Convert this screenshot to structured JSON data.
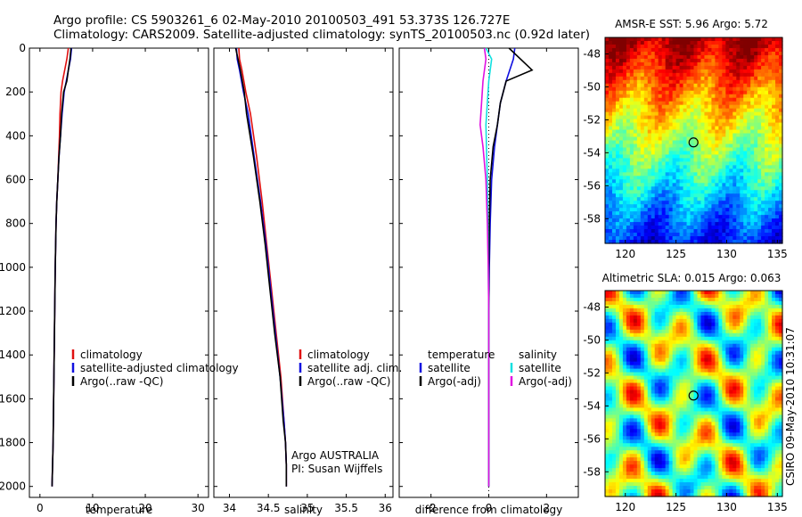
{
  "header": {
    "title_line1": "Argo profile: CS 5903261_6 02-May-2010 20100503_491 53.373S 126.727E",
    "title_line2": "Climatology: CARS2009. Satellite-adjusted climatology: synTS_20100503.nc (0.92d later)"
  },
  "colors": {
    "climatology": "#e01010",
    "satellite": "#1010e0",
    "argo": "#000000",
    "satellite_diff": "#10e0e0",
    "argo_diff": "#e010e0"
  },
  "footer": {
    "agency": "Argo AUSTRALIA",
    "pi": "PI: Susan Wijffels",
    "stamp": "CSIRO 09-May-2010 10:31:07"
  },
  "chart_data": [
    {
      "id": "temperature",
      "type": "line",
      "xlabel": "temperature",
      "ylabel": "",
      "xlim": [
        -2,
        32
      ],
      "ylim": [
        2050,
        0
      ],
      "xticks": [
        "0",
        "10",
        "20",
        "30"
      ],
      "xtick_values": [
        0,
        10,
        20,
        30
      ],
      "yticks": [
        "0",
        "200",
        "400",
        "600",
        "800",
        "1000",
        "1200",
        "1400",
        "1600",
        "1800",
        "2000"
      ],
      "ytick_values": [
        0,
        200,
        400,
        600,
        800,
        1000,
        1200,
        1400,
        1600,
        1800,
        2000
      ],
      "legend": [
        "climatology",
        "satellite-adjusted climatology",
        "Argo(..raw -QC)"
      ],
      "series": [
        {
          "name": "climatology",
          "color": "#e01010",
          "x": [
            5.4,
            5.1,
            4.7,
            4.3,
            4.0,
            3.8,
            3.7,
            3.55,
            3.4,
            3.2,
            3.05,
            2.9,
            2.8,
            2.7,
            2.6,
            2.5,
            2.4,
            2.3
          ],
          "y": [
            0,
            50,
            100,
            150,
            200,
            300,
            400,
            500,
            600,
            700,
            800,
            1000,
            1200,
            1400,
            1600,
            1800,
            1900,
            2000
          ]
        },
        {
          "name": "satellite-adjusted climatology",
          "color": "#1010e0",
          "x": [
            6.0,
            5.8,
            5.4,
            5.0,
            4.6,
            4.2,
            3.9,
            3.6,
            3.4,
            3.2,
            3.05,
            2.9,
            2.8,
            2.7,
            2.6,
            2.5,
            2.4,
            2.3
          ],
          "y": [
            0,
            50,
            100,
            150,
            200,
            300,
            400,
            500,
            600,
            700,
            800,
            1000,
            1200,
            1400,
            1600,
            1800,
            1900,
            2000
          ]
        },
        {
          "name": "Argo(..raw -QC)",
          "color": "#000000",
          "x": [
            5.9,
            5.7,
            5.4,
            5.1,
            4.5,
            4.1,
            3.9,
            3.6,
            3.4,
            3.2,
            3.05,
            2.9,
            2.8,
            2.7,
            2.6,
            2.5,
            2.4,
            2.3
          ],
          "y": [
            0,
            50,
            100,
            150,
            200,
            300,
            400,
            500,
            600,
            700,
            800,
            1000,
            1200,
            1400,
            1600,
            1800,
            1900,
            2000
          ]
        }
      ]
    },
    {
      "id": "salinity",
      "type": "line",
      "xlabel": "salinity",
      "ylabel": "",
      "xlim": [
        33.8,
        36.1
      ],
      "ylim": [
        2050,
        0
      ],
      "xticks": [
        "34",
        "34.5",
        "35",
        "35.5",
        "36"
      ],
      "xtick_values": [
        34,
        34.5,
        35,
        35.5,
        36
      ],
      "legend": [
        "climatology",
        "satellite adj. clim.",
        "Argo(..raw -QC)"
      ],
      "series": [
        {
          "name": "climatology",
          "color": "#e01010",
          "x": [
            34.12,
            34.13,
            34.16,
            34.21,
            34.27,
            34.35,
            34.42,
            34.48,
            34.54,
            34.6,
            34.66,
            34.7,
            34.72,
            34.73,
            34.73
          ],
          "y": [
            0,
            50,
            100,
            200,
            300,
            500,
            700,
            900,
            1100,
            1300,
            1500,
            1700,
            1800,
            1900,
            2000
          ]
        },
        {
          "name": "satellite adj. clim.",
          "color": "#1010e0",
          "x": [
            34.09,
            34.1,
            34.13,
            34.18,
            34.24,
            34.32,
            34.4,
            34.47,
            34.53,
            34.59,
            34.65,
            34.7,
            34.72,
            34.73,
            34.73
          ],
          "y": [
            0,
            50,
            100,
            200,
            300,
            500,
            700,
            900,
            1100,
            1300,
            1500,
            1700,
            1800,
            1900,
            2000
          ]
        },
        {
          "name": "Argo(..raw -QC)",
          "color": "#000000",
          "x": [
            34.08,
            34.11,
            34.14,
            34.19,
            34.22,
            34.31,
            34.39,
            34.46,
            34.52,
            34.58,
            34.65,
            34.69,
            34.72,
            34.73,
            34.73
          ],
          "y": [
            0,
            50,
            100,
            200,
            300,
            500,
            700,
            900,
            1100,
            1300,
            1500,
            1700,
            1800,
            1900,
            2000
          ]
        }
      ]
    },
    {
      "id": "difference",
      "type": "line",
      "xlabel": "difference from climatology",
      "ylabel": "",
      "xlim": [
        -3.1,
        3.1
      ],
      "ylim": [
        2050,
        0
      ],
      "xticks": [
        "-2",
        "0",
        "2"
      ],
      "xtick_values": [
        -2,
        0,
        2
      ],
      "legend_groups": [
        "temperature",
        "salinity"
      ],
      "legend": [
        "satellite",
        "Argo(-adj)",
        "satellite",
        "Argo(-adj)"
      ],
      "series": [
        {
          "name": "temperature satellite",
          "color": "#1010e0",
          "x": [
            0.9,
            0.85,
            0.6,
            0.4,
            0.3,
            0.2,
            0.1,
            0.05,
            0.02,
            0,
            0,
            0,
            0
          ],
          "y": [
            0,
            50,
            150,
            250,
            350,
            450,
            600,
            800,
            1000,
            1200,
            1500,
            1800,
            2000
          ]
        },
        {
          "name": "temperature Argo(-adj)",
          "color": "#000000",
          "x": [
            0.7,
            1.5,
            0.6,
            0.4,
            0.3,
            0.15,
            0.05,
            0.02,
            0,
            0,
            0,
            0,
            0
          ],
          "y": [
            0,
            100,
            150,
            250,
            350,
            450,
            600,
            800,
            1000,
            1200,
            1500,
            1800,
            2000
          ]
        },
        {
          "name": "salinity satellite",
          "color": "#10e0e0",
          "x": [
            -0.1,
            0.1,
            0.0,
            -0.05,
            -0.1,
            -0.08,
            -0.05,
            -0.03,
            -0.02,
            0,
            0,
            0,
            0
          ],
          "y": [
            0,
            50,
            150,
            250,
            350,
            450,
            600,
            800,
            1000,
            1200,
            1500,
            1800,
            2000
          ]
        },
        {
          "name": "salinity Argo(-adj)",
          "color": "#e010e0",
          "x": [
            -0.15,
            -0.1,
            -0.2,
            -0.25,
            -0.3,
            -0.2,
            -0.1,
            -0.05,
            -0.02,
            0,
            0,
            0,
            0
          ],
          "y": [
            0,
            50,
            150,
            250,
            350,
            450,
            600,
            800,
            1000,
            1200,
            1500,
            1800,
            2000
          ]
        }
      ]
    },
    {
      "id": "sst-map",
      "type": "heatmap",
      "title": "AMSR-E SST: 5.96 Argo: 5.72",
      "xlim": [
        118,
        135.5
      ],
      "ylim": [
        -59.5,
        -47
      ],
      "xticks": [
        "120",
        "125",
        "130",
        "135"
      ],
      "xtick_values": [
        120,
        125,
        130,
        135
      ],
      "yticks": [
        "-48",
        "-50",
        "-52",
        "-54",
        "-56",
        "-58"
      ],
      "ytick_values": [
        -48,
        -50,
        -52,
        -54,
        -56,
        -58
      ],
      "marker": {
        "lon": 126.727,
        "lat": -53.373
      }
    },
    {
      "id": "sla-map",
      "type": "heatmap",
      "title": "Altimetric SLA: 0.015 Argo: 0.063",
      "xlim": [
        118,
        135.5
      ],
      "ylim": [
        -59.5,
        -47
      ],
      "xticks": [
        "120",
        "125",
        "130",
        "135"
      ],
      "xtick_values": [
        120,
        125,
        130,
        135
      ],
      "yticks": [
        "-48",
        "-50",
        "-52",
        "-54",
        "-56",
        "-58"
      ],
      "ytick_values": [
        -48,
        -50,
        -52,
        -54,
        -56,
        -58
      ],
      "marker": {
        "lon": 126.727,
        "lat": -53.373
      }
    }
  ]
}
